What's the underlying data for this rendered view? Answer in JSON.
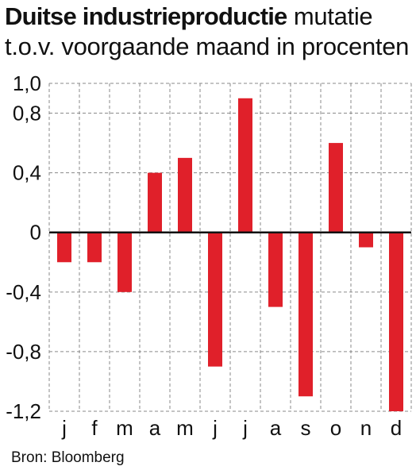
{
  "title": {
    "bold": "Duitse industrieproductie",
    "rest": "mutatie",
    "line2": "t.o.v. voorgaande maand in procenten"
  },
  "source": "Bron: Bloomberg",
  "colors": {
    "bar": "#e0202a",
    "grid": "#8a8a8a",
    "axis": "#111111"
  },
  "chart_data": {
    "type": "bar",
    "title": "Duitse industrieproductie mutatie t.o.v. voorgaande maand in procenten",
    "categories": [
      "j",
      "f",
      "m",
      "a",
      "m",
      "j",
      "j",
      "a",
      "s",
      "o",
      "n",
      "d"
    ],
    "values": [
      -0.2,
      -0.2,
      -0.4,
      0.4,
      0.5,
      -0.9,
      0.9,
      -0.5,
      -1.1,
      0.6,
      -0.1,
      -1.2
    ],
    "yticks": [
      1.0,
      0.8,
      0.4,
      0,
      -0.4,
      -0.8,
      -1.2
    ],
    "ytick_labels": [
      "1,0",
      "0,8",
      "0,4",
      "0",
      "-0,4",
      "-0,8",
      "-1,2"
    ],
    "ylim": [
      -1.2,
      1.0
    ],
    "xlabel": "",
    "ylabel": "",
    "grid": "dashed",
    "legend": "none"
  }
}
